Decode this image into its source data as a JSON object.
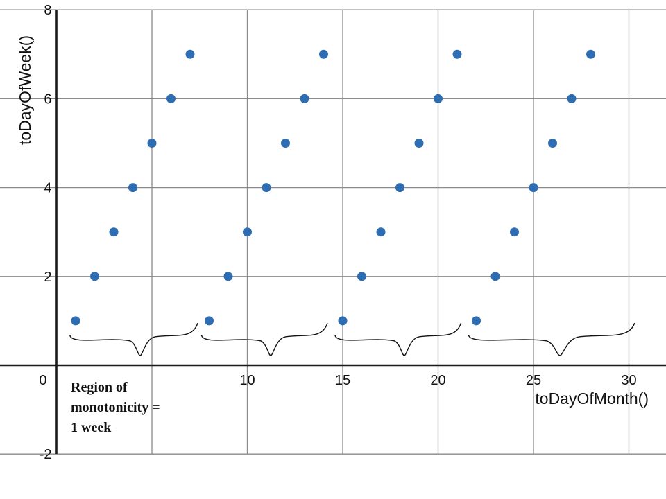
{
  "chart_data": {
    "type": "scatter",
    "title": "",
    "xlabel": "toDayOfMonth()",
    "ylabel": "toDayOfWeek()",
    "xlim": [
      -0.1,
      31.5
    ],
    "ylim": [
      -2.2,
      8.2
    ],
    "grid": true,
    "x_gridlines": [
      5,
      10,
      15,
      20,
      25,
      30
    ],
    "y_gridlines": [
      -2,
      2,
      4,
      6,
      8
    ],
    "x_tick_labels": [
      {
        "value": 0,
        "label": "0"
      },
      {
        "value": 10,
        "label": "10"
      },
      {
        "value": 15,
        "label": "15"
      },
      {
        "value": 20,
        "label": "20"
      },
      {
        "value": 25,
        "label": "25"
      },
      {
        "value": 30,
        "label": "30"
      }
    ],
    "y_tick_labels": [
      {
        "value": 8,
        "label": "8"
      },
      {
        "value": 6,
        "label": "6"
      },
      {
        "value": 4,
        "label": "4"
      },
      {
        "value": 2,
        "label": "2"
      },
      {
        "value": -2,
        "label": "-2"
      }
    ],
    "point_color": "#2f6db3",
    "series": [
      {
        "x": [
          1,
          2,
          3,
          4,
          5,
          6,
          7,
          8,
          9,
          10,
          11,
          12,
          13,
          14,
          15,
          16,
          17,
          18,
          19,
          20,
          21,
          22,
          23,
          24,
          25,
          26,
          27,
          28
        ],
        "y": [
          1,
          2,
          3,
          4,
          5,
          6,
          7,
          1,
          2,
          3,
          4,
          5,
          6,
          7,
          1,
          2,
          3,
          4,
          5,
          6,
          7,
          1,
          2,
          3,
          4,
          5,
          6,
          7
        ]
      }
    ],
    "annotation": {
      "lines": [
        "Region of",
        "monotonicity =",
        "1 week"
      ]
    },
    "braces": [
      {
        "x_start": 0.7,
        "x_end": 7.4
      },
      {
        "x_start": 7.6,
        "x_end": 14.2
      },
      {
        "x_start": 14.6,
        "x_end": 21.2
      },
      {
        "x_start": 21.6,
        "x_end": 30.3
      }
    ]
  }
}
